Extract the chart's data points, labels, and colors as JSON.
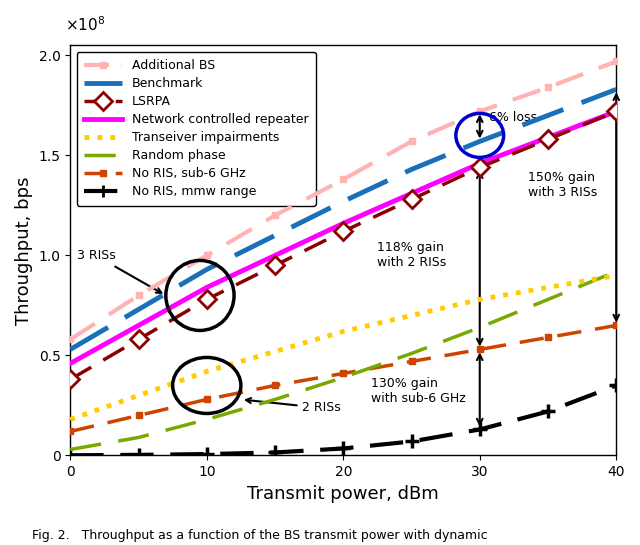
{
  "x": [
    0,
    5,
    10,
    15,
    20,
    25,
    30,
    35,
    40
  ],
  "additional_bs": [
    58000000.0,
    80000000.0,
    100000000.0,
    120000000.0,
    138000000.0,
    157000000.0,
    172000000.0,
    184000000.0,
    197000000.0
  ],
  "benchmark": [
    53000000.0,
    73000000.0,
    93000000.0,
    110000000.0,
    127000000.0,
    143000000.0,
    157000000.0,
    170000000.0,
    183000000.0
  ],
  "lsrpa": [
    38000000.0,
    58000000.0,
    78000000.0,
    95000000.0,
    112000000.0,
    128000000.0,
    144000000.0,
    158000000.0,
    172000000.0
  ],
  "ncr": [
    46000000.0,
    65000000.0,
    84000000.0,
    100000000.0,
    116000000.0,
    131000000.0,
    146000000.0,
    159000000.0,
    172000000.0
  ],
  "transceiver": [
    18000000.0,
    30000000.0,
    42000000.0,
    52000000.0,
    62000000.0,
    70000000.0,
    78000000.0,
    84000000.0,
    90000000.0
  ],
  "random_phase": [
    3000000.0,
    9000000.0,
    18000000.0,
    28000000.0,
    39000000.0,
    51000000.0,
    64000000.0,
    78000000.0,
    92000000.0
  ],
  "no_ris_sub6": [
    12000000.0,
    20000000.0,
    28000000.0,
    35000000.0,
    41000000.0,
    47000000.0,
    53000000.0,
    59000000.0,
    65000000.0
  ],
  "no_ris_mmw": [
    100000.0,
    300000.0,
    700000.0,
    1500000.0,
    3500000.0,
    7000000.0,
    13000000.0,
    22000000.0,
    35000000.0
  ],
  "colors": {
    "additional_bs": "#ffb3b3",
    "benchmark": "#1a6fbb",
    "lsrpa": "#8b0000",
    "ncr": "#ff00ff",
    "transceiver": "#ffcc00",
    "random_phase": "#77aa00",
    "no_ris_sub6": "#cc4400",
    "no_ris_mmw": "#000000"
  },
  "xlabel": "Transmit power, dBm",
  "ylabel": "Throughput, bps",
  "xlim": [
    0,
    40
  ],
  "ylim": [
    0,
    205000000.0
  ],
  "yticks": [
    0,
    50000000.0,
    100000000.0,
    150000000.0,
    200000000.0
  ],
  "xticks": [
    0,
    10,
    20,
    30,
    40
  ],
  "caption": "Fig. 2.   Throughput as a function of the BS transmit power with dynamic"
}
